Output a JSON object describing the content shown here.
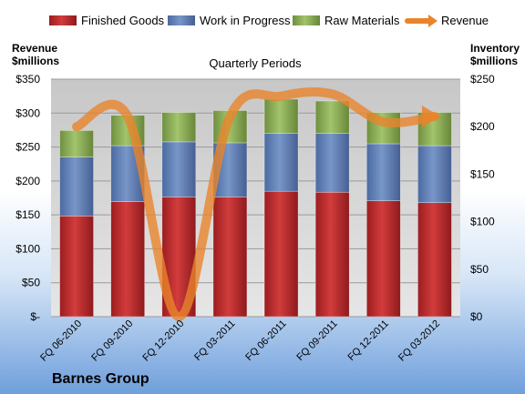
{
  "chart_data": {
    "type": "bar",
    "subtitle": "Quarterly Periods",
    "company": "Barnes Group",
    "left_axis_label": [
      "Revenue",
      "$millions"
    ],
    "right_axis_label": [
      "Inventory",
      "$millions"
    ],
    "left_ticks": [
      "$-",
      "$50",
      "$100",
      "$150",
      "$200",
      "$250",
      "$300",
      "$350"
    ],
    "right_ticks": [
      "$0",
      "$50",
      "$100",
      "$150",
      "$200",
      "$250"
    ],
    "left_ylim": [
      0,
      350
    ],
    "right_ylim": [
      0,
      250
    ],
    "categories": [
      "FQ 06-2010",
      "FQ 09-2010",
      "FQ 12-2010",
      "FQ 03-2011",
      "FQ 06-2011",
      "FQ 09-2011",
      "FQ 12-2011",
      "FQ 03-2012"
    ],
    "stacked": true,
    "legend_position": "top",
    "series": [
      {
        "name": "Finished Goods",
        "axis": "right",
        "color": "#c0282c",
        "values": [
          106,
          121,
          126,
          126,
          132,
          131,
          122,
          120
        ]
      },
      {
        "name": "Work in Progress",
        "axis": "right",
        "color": "#5b7fb8",
        "values": [
          62,
          59,
          58,
          57,
          61,
          62,
          60,
          60
        ]
      },
      {
        "name": "Raw Materials",
        "axis": "right",
        "color": "#8fb35a",
        "values": [
          28,
          32,
          31,
          34,
          36,
          34,
          33,
          35
        ]
      },
      {
        "name": "Revenue",
        "axis": "left",
        "type": "line",
        "color": "#e8842c",
        "values": [
          280,
          295,
          0,
          295,
          325,
          328,
          287,
          295
        ]
      }
    ],
    "grid": true
  }
}
